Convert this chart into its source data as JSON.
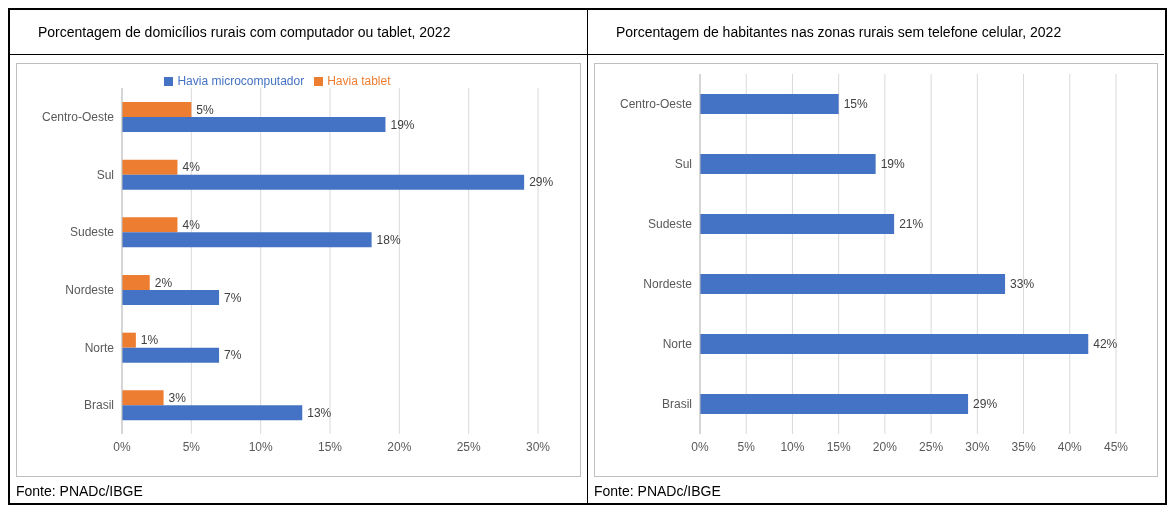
{
  "chart_data": [
    {
      "type": "bar",
      "orientation": "horizontal",
      "title": "Porcentagem de domicílios rurais com computador ou tablet, 2022",
      "categories": [
        "Centro-Oeste",
        "Sul",
        "Sudeste",
        "Nordeste",
        "Norte",
        "Brasil"
      ],
      "series": [
        {
          "name": "Havia tablet",
          "color": "#ed7d31",
          "values": [
            5,
            4,
            4,
            2,
            1,
            3
          ],
          "value_labels": [
            "5%",
            "4%",
            "4%",
            "2%",
            "1%",
            "3%"
          ]
        },
        {
          "name": "Havia microcomputador",
          "color": "#4472c4",
          "values": [
            19,
            29,
            18,
            7,
            7,
            13
          ],
          "value_labels": [
            "19%",
            "29%",
            "18%",
            "7%",
            "7%",
            "13%"
          ]
        }
      ],
      "xlim": [
        0,
        30
      ],
      "xticks": [
        {
          "value": 0,
          "label": "0%"
        },
        {
          "value": 5,
          "label": "5%"
        },
        {
          "value": 10,
          "label": "10%"
        },
        {
          "value": 15,
          "label": "15%"
        },
        {
          "value": 20,
          "label": "20%"
        },
        {
          "value": 25,
          "label": "25%"
        },
        {
          "value": 30,
          "label": "30%"
        }
      ],
      "grid": "x",
      "legend": "top",
      "annotations": [
        "Fonte: PNADc/IBGE"
      ]
    },
    {
      "type": "bar",
      "orientation": "horizontal",
      "title": "Porcentagem de habitantes nas zonas rurais sem telefone celular, 2022",
      "categories": [
        "Centro-Oeste",
        "Sul",
        "Sudeste",
        "Nordeste",
        "Norte",
        "Brasil"
      ],
      "values": [
        15,
        19,
        21,
        33,
        42,
        29
      ],
      "color": "#4472c4",
      "value_labels": [
        "15%",
        "19%",
        "21%",
        "33%",
        "42%",
        "29%"
      ],
      "xlim": [
        0,
        45
      ],
      "xticks": [
        {
          "value": 0,
          "label": "0%"
        },
        {
          "value": 5,
          "label": "5%"
        },
        {
          "value": 10,
          "label": "10%"
        },
        {
          "value": 15,
          "label": "15%"
        },
        {
          "value": 20,
          "label": "20%"
        },
        {
          "value": 25,
          "label": "25%"
        },
        {
          "value": 30,
          "label": "30%"
        },
        {
          "value": 35,
          "label": "35%"
        },
        {
          "value": 40,
          "label": "40%"
        },
        {
          "value": 45,
          "label": "45%"
        }
      ],
      "grid": "x",
      "annotations": [
        "Fonte: PNADc/IBGE"
      ]
    }
  ]
}
